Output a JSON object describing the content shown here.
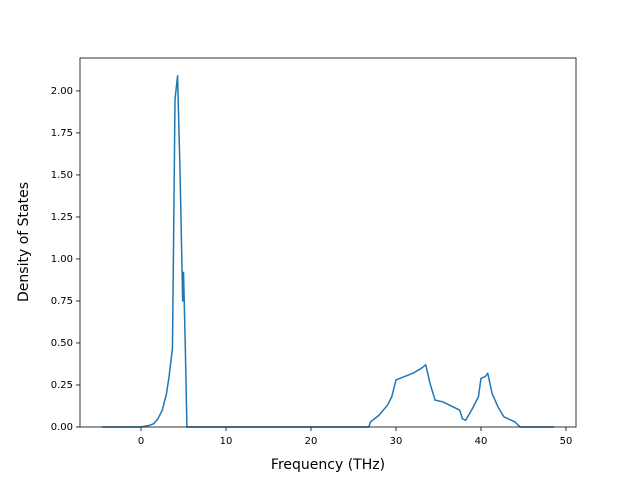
{
  "chart_data": {
    "type": "line",
    "xlabel": "Frequency (THz)",
    "ylabel": "Density of States",
    "x": [
      -4.6,
      0,
      1,
      1.5,
      2,
      2.5,
      3,
      3.3,
      3.7,
      4.0,
      4.3,
      4.6,
      4.9,
      5.0,
      5.2,
      5.4,
      26.8,
      27,
      28,
      29,
      29.5,
      30,
      31,
      32,
      33,
      33.5,
      34,
      34.6,
      35.5,
      37.5,
      37.8,
      38.2,
      39,
      39.7,
      40,
      40.5,
      40.8,
      41.3,
      42,
      42.7,
      44,
      44.6,
      48.6
    ],
    "series": [
      {
        "color": "#1f77b4",
        "values": [
          0,
          0,
          0.01,
          0.02,
          0.05,
          0.1,
          0.2,
          0.3,
          0.47,
          1.95,
          2.09,
          1.5,
          0.75,
          0.92,
          0.5,
          0,
          0,
          0.03,
          0.07,
          0.13,
          0.18,
          0.28,
          0.3,
          0.32,
          0.35,
          0.37,
          0.26,
          0.16,
          0.15,
          0.1,
          0.05,
          0.04,
          0.11,
          0.18,
          0.29,
          0.3,
          0.32,
          0.2,
          0.12,
          0.06,
          0.03,
          0,
          0
        ]
      }
    ],
    "xlim": [
      -7.18,
      51.18
    ],
    "ylim": [
      0,
      2.196
    ],
    "xticks": [
      0,
      10,
      20,
      30,
      40,
      50
    ],
    "yticks": [
      {
        "value": 0,
        "label": "0.00"
      },
      {
        "value": 0.25,
        "label": "0.25"
      },
      {
        "value": 0.5,
        "label": "0.50"
      },
      {
        "value": 0.75,
        "label": "0.75"
      },
      {
        "value": 1,
        "label": "1.00"
      },
      {
        "value": 1.25,
        "label": "1.25"
      },
      {
        "value": 1.5,
        "label": "1.50"
      },
      {
        "value": 1.75,
        "label": "1.75"
      },
      {
        "value": 2,
        "label": "2.00"
      }
    ]
  }
}
